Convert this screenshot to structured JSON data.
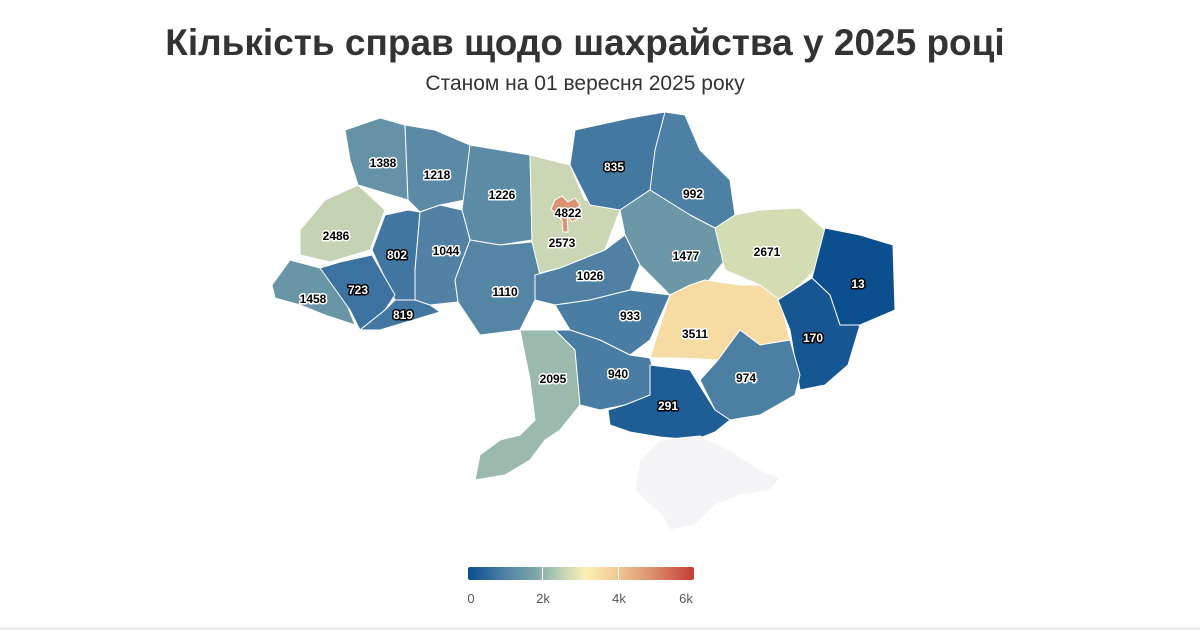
{
  "title": "Кількість справ щодо шахрайства у 2025 році",
  "subtitle": "Станом на 01 вересня 2025 року",
  "legend": {
    "ticks": [
      "0",
      "2k",
      "4k",
      "6k"
    ],
    "colors": [
      "#0a4e8f",
      "#7ea6a8",
      "#fbf0b4",
      "#c23f33"
    ]
  },
  "regions": [
    {
      "id": "volyn",
      "value": 1388
    },
    {
      "id": "rivne",
      "value": 1218
    },
    {
      "id": "zhytomyr",
      "value": 1226
    },
    {
      "id": "kyiv-oblast",
      "value": 2573
    },
    {
      "id": "kyiv-city",
      "value": 4822
    },
    {
      "id": "chernihiv",
      "value": 835
    },
    {
      "id": "sumy",
      "value": 992
    },
    {
      "id": "lviv",
      "value": 2486
    },
    {
      "id": "ternopil",
      "value": 802
    },
    {
      "id": "khmelnytskyi",
      "value": 1044
    },
    {
      "id": "vinnytsia",
      "value": 1110
    },
    {
      "id": "cherkasy",
      "value": 1026
    },
    {
      "id": "poltava",
      "value": 1477
    },
    {
      "id": "kharkiv",
      "value": 2671
    },
    {
      "id": "luhansk",
      "value": 13
    },
    {
      "id": "zakarpattia",
      "value": 1458
    },
    {
      "id": "ivano-frankivsk",
      "value": 723
    },
    {
      "id": "chernivtsi",
      "value": 819
    },
    {
      "id": "kirovohrad",
      "value": 933
    },
    {
      "id": "dnipropetrovsk",
      "value": 3511
    },
    {
      "id": "donetsk",
      "value": 170
    },
    {
      "id": "odesa",
      "value": 2095
    },
    {
      "id": "mykolaiv",
      "value": 940
    },
    {
      "id": "zaporizhzhia",
      "value": 974
    },
    {
      "id": "kherson",
      "value": 291
    },
    {
      "id": "crimea",
      "value": null
    }
  ]
}
